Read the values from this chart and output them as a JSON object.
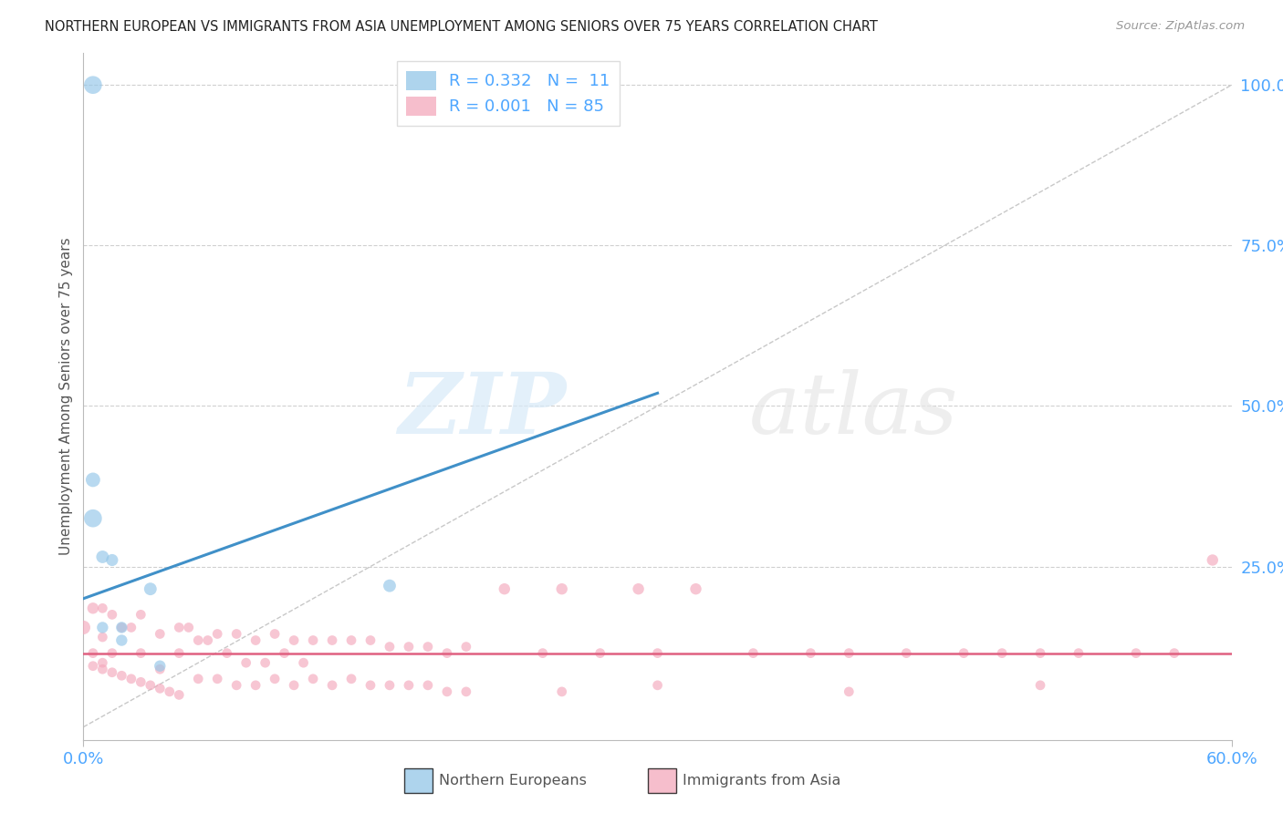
{
  "title": "NORTHERN EUROPEAN VS IMMIGRANTS FROM ASIA UNEMPLOYMENT AMONG SENIORS OVER 75 YEARS CORRELATION CHART",
  "source": "Source: ZipAtlas.com",
  "tick_color": "#4da6ff",
  "ylabel": "Unemployment Among Seniors over 75 years",
  "xlim": [
    0.0,
    0.6
  ],
  "ylim": [
    -0.02,
    1.05
  ],
  "x_ticks": [
    0.0,
    0.6
  ],
  "x_tick_labels": [
    "0.0%",
    "60.0%"
  ],
  "y_ticks": [
    0.0,
    0.25,
    0.5,
    0.75,
    1.0
  ],
  "y_tick_labels": [
    "",
    "25.0%",
    "50.0%",
    "75.0%",
    "100.0%"
  ],
  "watermark_zip": "ZIP",
  "watermark_atlas": "atlas",
  "blue_R": "0.332",
  "blue_N": "11",
  "pink_R": "0.001",
  "pink_N": "85",
  "blue_color": "#93c6e8",
  "pink_color": "#f4a8bc",
  "blue_line_color": "#4090c8",
  "pink_line_color": "#e06080",
  "diagonal_color": "#c8c8c8",
  "legend_label_blue": "Northern Europeans",
  "legend_label_pink": "Immigrants from Asia",
  "blue_points_x": [
    0.005,
    0.01,
    0.01,
    0.015,
    0.02,
    0.02,
    0.035,
    0.04,
    0.16,
    0.005,
    0.005
  ],
  "blue_points_y": [
    0.325,
    0.265,
    0.155,
    0.26,
    0.155,
    0.135,
    0.215,
    0.095,
    0.22,
    0.385,
    1.0
  ],
  "blue_sizes": [
    200,
    100,
    80,
    90,
    80,
    80,
    100,
    80,
    100,
    130,
    200
  ],
  "pink_points_x": [
    0.0,
    0.005,
    0.005,
    0.01,
    0.01,
    0.01,
    0.015,
    0.015,
    0.02,
    0.025,
    0.03,
    0.03,
    0.04,
    0.04,
    0.05,
    0.05,
    0.055,
    0.06,
    0.065,
    0.07,
    0.075,
    0.08,
    0.085,
    0.09,
    0.095,
    0.1,
    0.105,
    0.11,
    0.115,
    0.12,
    0.13,
    0.14,
    0.15,
    0.16,
    0.17,
    0.18,
    0.19,
    0.2,
    0.22,
    0.24,
    0.25,
    0.27,
    0.29,
    0.3,
    0.32,
    0.35,
    0.38,
    0.4,
    0.43,
    0.46,
    0.48,
    0.5,
    0.52,
    0.55,
    0.57,
    0.59,
    0.005,
    0.01,
    0.015,
    0.02,
    0.025,
    0.03,
    0.035,
    0.04,
    0.045,
    0.05,
    0.06,
    0.07,
    0.08,
    0.09,
    0.1,
    0.11,
    0.12,
    0.13,
    0.14,
    0.15,
    0.16,
    0.17,
    0.18,
    0.19,
    0.3,
    0.4,
    0.5,
    0.2,
    0.25
  ],
  "pink_points_y": [
    0.155,
    0.185,
    0.115,
    0.185,
    0.14,
    0.1,
    0.175,
    0.115,
    0.155,
    0.155,
    0.175,
    0.115,
    0.145,
    0.09,
    0.155,
    0.115,
    0.155,
    0.135,
    0.135,
    0.145,
    0.115,
    0.145,
    0.1,
    0.135,
    0.1,
    0.145,
    0.115,
    0.135,
    0.1,
    0.135,
    0.135,
    0.135,
    0.135,
    0.125,
    0.125,
    0.125,
    0.115,
    0.125,
    0.215,
    0.115,
    0.215,
    0.115,
    0.215,
    0.115,
    0.215,
    0.115,
    0.115,
    0.115,
    0.115,
    0.115,
    0.115,
    0.115,
    0.115,
    0.115,
    0.115,
    0.26,
    0.095,
    0.09,
    0.085,
    0.08,
    0.075,
    0.07,
    0.065,
    0.06,
    0.055,
    0.05,
    0.075,
    0.075,
    0.065,
    0.065,
    0.075,
    0.065,
    0.075,
    0.065,
    0.075,
    0.065,
    0.065,
    0.065,
    0.065,
    0.055,
    0.065,
    0.055,
    0.065,
    0.055,
    0.055
  ],
  "pink_sizes": [
    120,
    80,
    60,
    60,
    60,
    60,
    60,
    60,
    60,
    60,
    60,
    60,
    60,
    60,
    60,
    60,
    60,
    60,
    60,
    60,
    60,
    60,
    60,
    60,
    60,
    60,
    60,
    60,
    60,
    60,
    60,
    60,
    60,
    60,
    60,
    60,
    60,
    60,
    80,
    60,
    80,
    60,
    80,
    60,
    80,
    60,
    60,
    60,
    60,
    60,
    60,
    60,
    60,
    60,
    60,
    80,
    60,
    60,
    60,
    60,
    60,
    60,
    60,
    60,
    60,
    60,
    60,
    60,
    60,
    60,
    60,
    60,
    60,
    60,
    60,
    60,
    60,
    60,
    60,
    60,
    60,
    60,
    60,
    60,
    60
  ],
  "background_color": "#ffffff",
  "grid_color": "#d0d0d0",
  "blue_line_x0": 0.0,
  "blue_line_y0": 0.2,
  "blue_line_x1": 0.3,
  "blue_line_y1": 0.52,
  "pink_line_x0": 0.0,
  "pink_line_y0": 0.115,
  "pink_line_x1": 0.6,
  "pink_line_y1": 0.115
}
